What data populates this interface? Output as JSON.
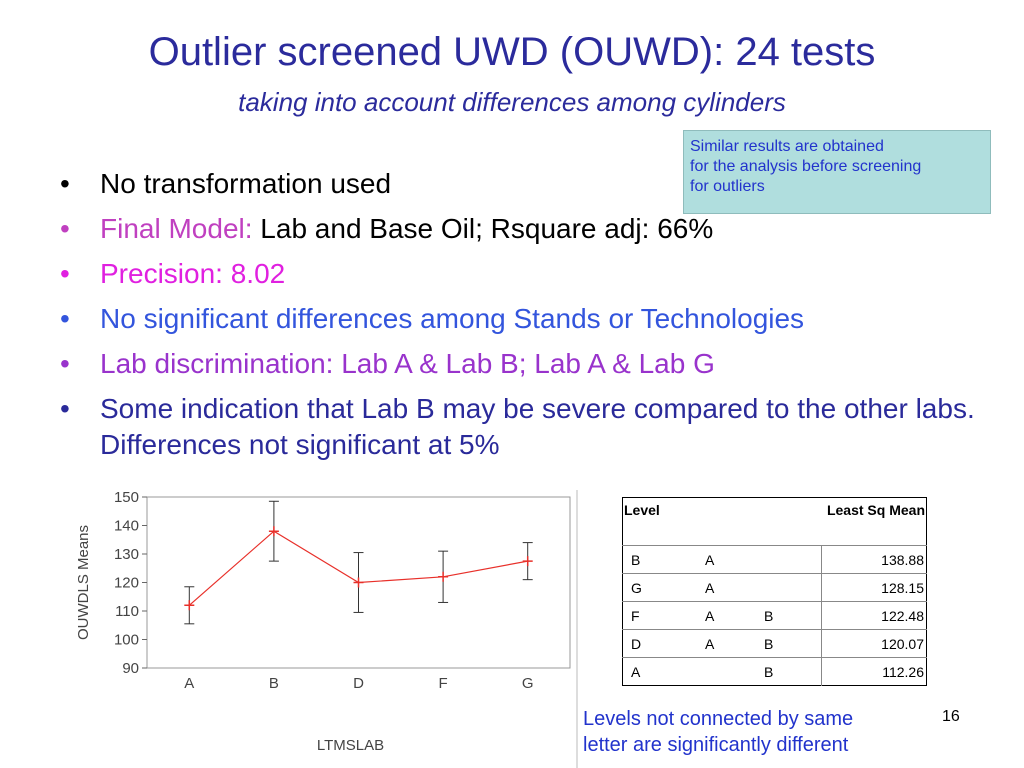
{
  "title": "Outlier screened UWD (OUWD): 24 tests",
  "subtitle": "taking into account differences among cylinders",
  "note": [
    "Similar results are obtained",
    "for the analysis before screening",
    "for outliers"
  ],
  "bullets": [
    [
      "No transformation used"
    ],
    [
      "Final Model:",
      "Lab and Base Oil; Rsquare adj: 66%"
    ],
    [
      "Precision: 8.02"
    ],
    [
      "No significant differences among Stands or Technologies"
    ],
    [
      "Lab discrimination: Lab A & Lab B; Lab A & Lab G"
    ],
    [
      "Some indication that Lab B may be severe compared to the other labs. Differences not significant at 5%"
    ]
  ],
  "chart_data": {
    "type": "line",
    "x_label": "LTMSLAB",
    "y_label": "OUWDLS Means",
    "categories": [
      "A",
      "B",
      "D",
      "F",
      "G"
    ],
    "values": [
      112,
      138,
      120,
      122,
      127.5
    ],
    "errors": [
      6.5,
      10.5,
      10.5,
      9,
      6.5
    ],
    "color": "#e8302a",
    "ylim": [
      90,
      150
    ],
    "yticks": [
      90,
      100,
      110,
      120,
      130,
      140,
      150
    ]
  },
  "table": {
    "header": [
      "Level",
      "Least Sq Mean"
    ],
    "rows": [
      [
        "B",
        "A",
        null,
        138.88
      ],
      [
        "G",
        "A",
        null,
        128.15
      ],
      [
        "F",
        "A",
        "B",
        122.48
      ],
      [
        "D",
        "A",
        "B",
        120.07
      ],
      [
        "A",
        null,
        "B",
        112.26
      ]
    ],
    "caption": [
      "Levels not connected by same",
      "letter are significantly different"
    ]
  },
  "page_number": "16"
}
